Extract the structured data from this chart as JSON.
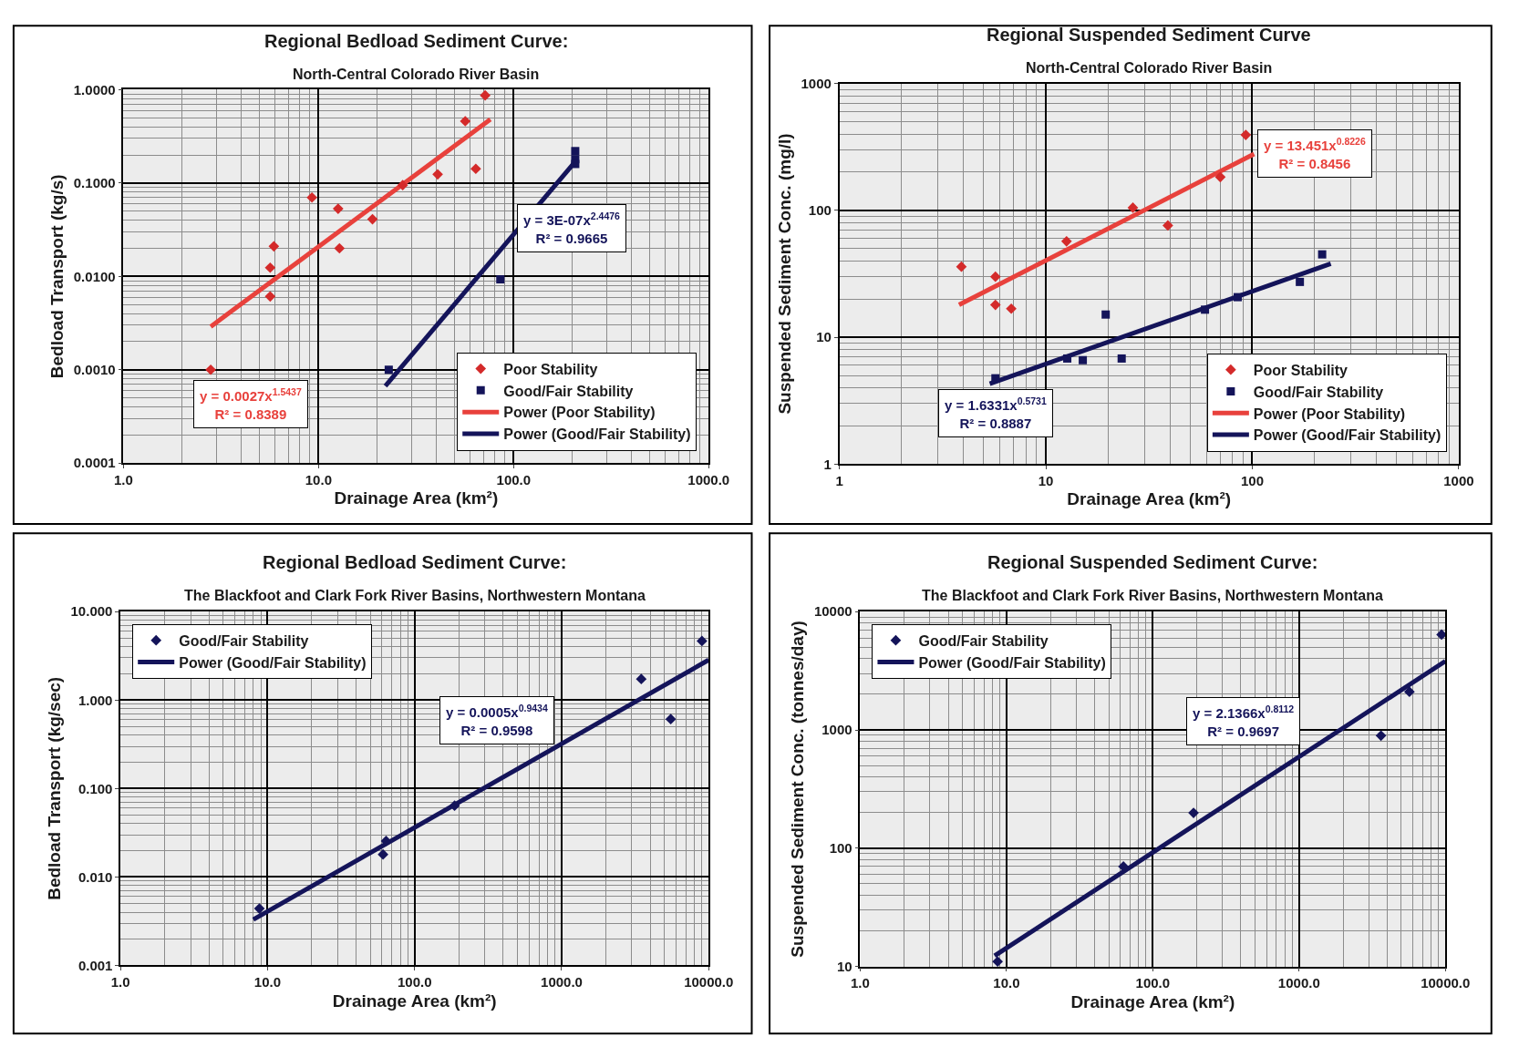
{
  "chart_data": [
    {
      "type": "scatter",
      "title": "Regional Bedload Sediment Curve:",
      "subtitle": "North-Central Colorado River Basin",
      "xlabel": "Drainage Area (km²)",
      "ylabel": "Bedload Transport (kg/s)",
      "log": "xy",
      "xlim": [
        1,
        1000
      ],
      "ylim": [
        0.0001,
        1
      ],
      "xticks": [
        {
          "value": 1,
          "label": "1.0"
        },
        {
          "value": 10,
          "label": "10.0"
        },
        {
          "value": 100,
          "label": "100.0"
        },
        {
          "value": 1000,
          "label": "1000.0"
        }
      ],
      "yticks": [
        {
          "value": 0.0001,
          "label": "0.0001"
        },
        {
          "value": 0.001,
          "label": "0.0010"
        },
        {
          "value": 0.01,
          "label": "0.0100"
        },
        {
          "value": 0.1,
          "label": "0.1000"
        },
        {
          "value": 1,
          "label": "1.0000"
        }
      ],
      "grid": true,
      "legend": "bottom right",
      "series": [
        {
          "name": "Poor Stability",
          "color": "#d42a2a",
          "marker": "diamond",
          "x": [
            2.8,
            5.65,
            5.9,
            5.65,
            9.25,
            12.6,
            12.8,
            18.9,
            27,
            40.8,
            56.5,
            64,
            71.5
          ],
          "values": [
            0.001,
            0.0124,
            0.021,
            0.0061,
            0.07,
            0.053,
            0.02,
            0.041,
            0.095,
            0.124,
            0.46,
            0.142,
            0.87
          ]
        },
        {
          "name": "Good/Fair Stability",
          "color": "#14145a",
          "marker": "square",
          "x": [
            22.9,
            85.5,
            207,
            207,
            207
          ],
          "values": [
            0.001,
            0.0093,
            0.22,
            0.18,
            0.16
          ]
        },
        {
          "name": "Power (Poor Stability)",
          "type": "line",
          "color": "#e8413c",
          "marker": "none",
          "x": [
            2.8,
            76
          ],
          "values": [
            0.0029,
            0.48
          ]
        },
        {
          "name": "Power (Good/Fair Stability)",
          "type": "line",
          "color": "#14145a",
          "marker": "none",
          "x": [
            22,
            207
          ],
          "values": [
            0.00067,
            0.17
          ]
        }
      ],
      "annotations": [
        "y = 0.0027x$^{1.5437}$\nR² = 0.8389",
        "y = 3E-07x$^{2.4476}$\nR² = 0.9665"
      ]
    },
    {
      "type": "scatter",
      "title": "Regional Suspended Sediment Curve",
      "subtitle": "North-Central Colorado River Basin",
      "xlabel": "Drainage Area (km²)",
      "ylabel": "Suspended Sediment Conc. (mg/l)",
      "log": "xy",
      "xlim": [
        1,
        1000
      ],
      "ylim": [
        1,
        1000
      ],
      "xticks": [
        1,
        10,
        100,
        1000
      ],
      "yticks": [
        1,
        10,
        100,
        1000
      ],
      "grid": true,
      "legend": "bottom right",
      "series": [
        {
          "name": "Poor Stability",
          "color": "#d42a2a",
          "marker": "diamond",
          "x": [
            3.9,
            5.7,
            5.7,
            6.8,
            12.6,
            26.4,
            39,
            70,
            93
          ],
          "values": [
            36,
            30,
            18,
            16.8,
            57,
            105,
            76,
            183,
            393
          ]
        },
        {
          "name": "Good/Fair Stability",
          "color": "#14145a",
          "marker": "square",
          "x": [
            5.7,
            12.7,
            15.1,
            19.5,
            23.3,
            59,
            85,
            170,
            218
          ],
          "values": [
            4.75,
            6.8,
            6.6,
            15.1,
            6.8,
            16.5,
            20.7,
            27.3,
            45
          ]
        },
        {
          "name": "Power (Poor Stability)",
          "type": "line",
          "color": "#e8413c",
          "marker": "none",
          "x": [
            3.8,
            102
          ],
          "values": [
            18,
            278
          ]
        },
        {
          "name": "Power (Good/Fair Stability)",
          "type": "line",
          "color": "#14145a",
          "marker": "none",
          "x": [
            5.35,
            240
          ],
          "values": [
            4.3,
            38
          ]
        }
      ],
      "annotations": [
        "y = 13.451x$^{0.8226}$\nR² = 0.8456",
        "y = 1.6331x$^{0.5731}$\nR² = 0.8887"
      ]
    },
    {
      "type": "scatter",
      "title": "Regional Bedload Sediment Curve:",
      "subtitle": "The Blackfoot and Clark Fork River Basins, Northwestern Montana",
      "xlabel": "Drainage Area (km²)",
      "ylabel": "Bedload Transport (kg/sec)",
      "log": "xy",
      "xlim": [
        1,
        10000
      ],
      "ylim": [
        0.001,
        10
      ],
      "xticks": [
        {
          "value": 1,
          "label": "1.0"
        },
        {
          "value": 10,
          "label": "10.0"
        },
        {
          "value": 100,
          "label": "100.0"
        },
        {
          "value": 1000,
          "label": "1000.0"
        },
        {
          "value": 10000,
          "label": "10000.0"
        }
      ],
      "yticks": [
        {
          "value": 0.001,
          "label": "0.001"
        },
        {
          "value": 0.01,
          "label": "0.010"
        },
        {
          "value": 0.1,
          "label": "0.100"
        },
        {
          "value": 1,
          "label": "1.000"
        },
        {
          "value": 10,
          "label": "10.000"
        }
      ],
      "grid": true,
      "legend": "top left",
      "series": [
        {
          "name": "Good/Fair Stability",
          "color": "#14145a",
          "marker": "diamond",
          "x": [
            8.8,
            61,
            64,
            187,
            3480,
            5520,
            9000
          ],
          "values": [
            0.0044,
            0.018,
            0.0255,
            0.064,
            1.73,
            0.61,
            4.66
          ]
        },
        {
          "name": "Power (Good/Fair Stability)",
          "type": "line",
          "color": "#14145a",
          "marker": "none",
          "x": [
            8,
            10000
          ],
          "values": [
            0.0033,
            2.84
          ]
        }
      ],
      "annotations": [
        "y = 0.0005x$^{0.9434}$\nR² = 0.9598"
      ]
    },
    {
      "type": "scatter",
      "title": "Regional Suspended Sediment Curve:",
      "subtitle": "The Blackfoot and Clark Fork River Basins, Northwestern Montana",
      "xlabel": "Drainage Area (km²)",
      "ylabel": "Suspended Sediment Conc. (tonnes/day)",
      "log": "xy",
      "xlim": [
        1,
        10000
      ],
      "ylim": [
        10,
        10000
      ],
      "xticks": [
        {
          "value": 1,
          "label": "1.0"
        },
        {
          "value": 10,
          "label": "10.0"
        },
        {
          "value": 100,
          "label": "100.0"
        },
        {
          "value": 1000,
          "label": "1000.0"
        },
        {
          "value": 10000,
          "label": "10000.0"
        }
      ],
      "yticks": [
        10,
        100,
        1000,
        10000
      ],
      "grid": true,
      "legend": "top left",
      "series": [
        {
          "name": "Good/Fair Stability",
          "color": "#14145a",
          "marker": "diamond",
          "x": [
            8.7,
            63,
            190,
            3630,
            5680,
            9420
          ],
          "values": [
            11,
            70,
            199,
            895,
            2100,
            6400
          ]
        },
        {
          "name": "Power (Good/Fair Stability)",
          "type": "line",
          "color": "#14145a",
          "marker": "none",
          "x": [
            8.3,
            10000
          ],
          "values": [
            12.3,
            3810
          ]
        }
      ],
      "annotations": [
        "y = 2.1366x$^{0.8112}$\nR² = 0.9697"
      ]
    }
  ]
}
